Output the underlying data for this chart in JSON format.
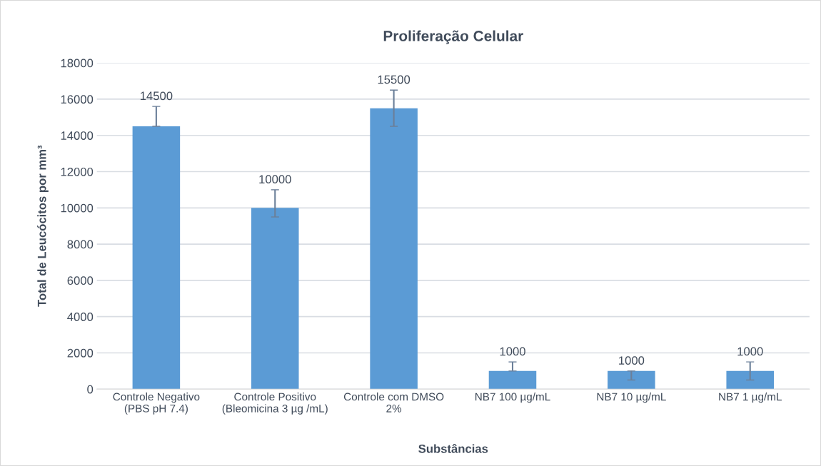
{
  "chart_data": {
    "type": "bar",
    "title": "Proliferação Celular",
    "xlabel": "Substâncias",
    "ylabel": "Total de Leucócitos por mm³",
    "categories": [
      "Controle Negativo\n(PBS pH 7.4)",
      "Controle Positivo\n(Bleomicina 3 µg /mL)",
      "Controle com DMSO\n2%",
      "NB7 100 µg/mL",
      "NB7 10 µg/mL",
      "NB7 1 µg/mL"
    ],
    "values": [
      14500,
      10000,
      15500,
      1000,
      1000,
      1000
    ],
    "errors": [
      [
        14500,
        15600
      ],
      [
        9500,
        11000
      ],
      [
        14500,
        16500
      ],
      [
        1000,
        1500
      ],
      [
        500,
        1000
      ],
      [
        500,
        1500
      ]
    ],
    "color": "#5b9bd5",
    "ylim": [
      0,
      18000
    ],
    "yticks": [
      0,
      2000,
      4000,
      6000,
      8000,
      10000,
      12000,
      14000,
      16000,
      18000
    ],
    "grid": "y",
    "data_labels": true
  }
}
